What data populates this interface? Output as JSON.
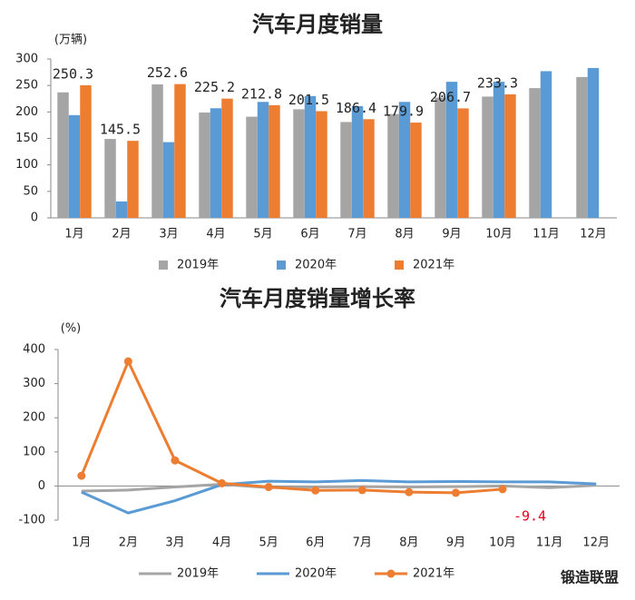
{
  "chart_data": [
    {
      "type": "bar",
      "title": "汽车月度销量",
      "y_label": "(万辆)",
      "categories": [
        "1月",
        "2月",
        "3月",
        "4月",
        "5月",
        "6月",
        "7月",
        "8月",
        "9月",
        "10月",
        "11月",
        "12月"
      ],
      "series": [
        {
          "name": "2019年",
          "color": "#a5a5a5",
          "values": [
            237,
            149,
            252,
            199,
            191,
            205,
            181,
            196,
            227,
            229,
            245,
            266
          ]
        },
        {
          "name": "2020年",
          "color": "#5b9bd5",
          "values": [
            194,
            31,
            143,
            207,
            219,
            230,
            211,
            219,
            257,
            257,
            277,
            283
          ]
        },
        {
          "name": "2021年",
          "color": "#ed7d31",
          "values": [
            250.3,
            145.5,
            252.6,
            225.2,
            212.8,
            201.5,
            186.4,
            179.9,
            206.7,
            233.3,
            null,
            null
          ],
          "show_labels": true
        }
      ],
      "ylim": [
        0,
        300
      ],
      "yticks": [
        0,
        50,
        100,
        150,
        200,
        250,
        300
      ],
      "legend": "bottom"
    },
    {
      "type": "line",
      "title": "汽车月度销量增长率",
      "y_label": "(%)",
      "categories": [
        "1月",
        "2月",
        "3月",
        "4月",
        "5月",
        "6月",
        "7月",
        "8月",
        "9月",
        "10月",
        "11月",
        "12月"
      ],
      "series": [
        {
          "name": "2019年",
          "color": "#a5a5a5",
          "values": [
            -15,
            -12,
            -3,
            5,
            -5,
            -3,
            -2,
            -3,
            -2,
            0,
            -5,
            2
          ]
        },
        {
          "name": "2020年",
          "color": "#5b9bd5",
          "values": [
            -18,
            -79,
            -43,
            4,
            14,
            12,
            16,
            12,
            13,
            12,
            12,
            6
          ]
        },
        {
          "name": "2021年",
          "color": "#ed7d31",
          "values": [
            30,
            365,
            75,
            8,
            -3,
            -13,
            -12,
            -18,
            -20,
            -9.4,
            null,
            null
          ],
          "markers": true,
          "label_indices": [
            9
          ],
          "label_color": "#e8001c"
        }
      ],
      "ylim": [
        -100,
        400
      ],
      "yticks": [
        -100,
        0,
        100,
        200,
        300,
        400
      ],
      "legend": "bottom"
    }
  ],
  "logo": "锻造联盟"
}
